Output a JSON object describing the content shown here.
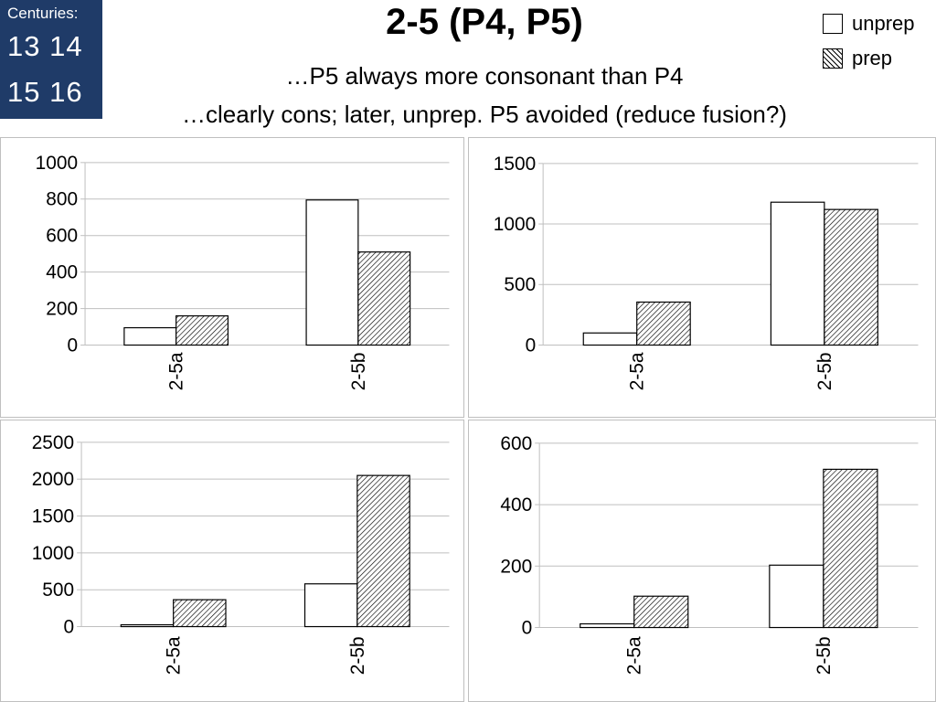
{
  "centuries": {
    "caption": "Centuries:",
    "row1": "13 14",
    "row2": "15 16"
  },
  "title": "2-5 (P4, P5)",
  "subtitle1": "…P5 always more consonant than P4",
  "subtitle2": "…clearly cons; later, unprep. P5 avoided (reduce fusion?)",
  "legend": [
    {
      "label": "unprep",
      "swatch": "plain"
    },
    {
      "label": "prep",
      "swatch": "hatched"
    }
  ],
  "colors": {
    "centuries_bg": "#1f3b68",
    "grid": "#bfbfbf",
    "bar_outline": "#000000",
    "hatch": "#000000"
  },
  "chart_data": [
    {
      "type": "bar",
      "categories": [
        "2-5a",
        "2-5b"
      ],
      "series": [
        {
          "name": "unprep",
          "values": [
            95,
            795
          ]
        },
        {
          "name": "prep",
          "values": [
            160,
            510
          ]
        }
      ],
      "ylim": [
        0,
        1000
      ],
      "yticks": [
        0,
        200,
        400,
        600,
        800,
        1000
      ],
      "grid": true
    },
    {
      "type": "bar",
      "categories": [
        "2-5a",
        "2-5b"
      ],
      "series": [
        {
          "name": "unprep",
          "values": [
            100,
            1180
          ]
        },
        {
          "name": "prep",
          "values": [
            355,
            1120
          ]
        }
      ],
      "ylim": [
        0,
        1500
      ],
      "yticks": [
        0,
        500,
        1000,
        1500
      ],
      "grid": true
    },
    {
      "type": "bar",
      "categories": [
        "2-5a",
        "2-5b"
      ],
      "series": [
        {
          "name": "unprep",
          "values": [
            25,
            580
          ]
        },
        {
          "name": "prep",
          "values": [
            365,
            2050
          ]
        }
      ],
      "ylim": [
        0,
        2500
      ],
      "yticks": [
        0,
        500,
        1000,
        1500,
        2000,
        2500
      ],
      "grid": true
    },
    {
      "type": "bar",
      "categories": [
        "2-5a",
        "2-5b"
      ],
      "series": [
        {
          "name": "unprep",
          "values": [
            12,
            203
          ]
        },
        {
          "name": "prep",
          "values": [
            102,
            515
          ]
        }
      ],
      "ylim": [
        0,
        600
      ],
      "yticks": [
        0,
        200,
        400,
        600
      ],
      "grid": true
    }
  ]
}
